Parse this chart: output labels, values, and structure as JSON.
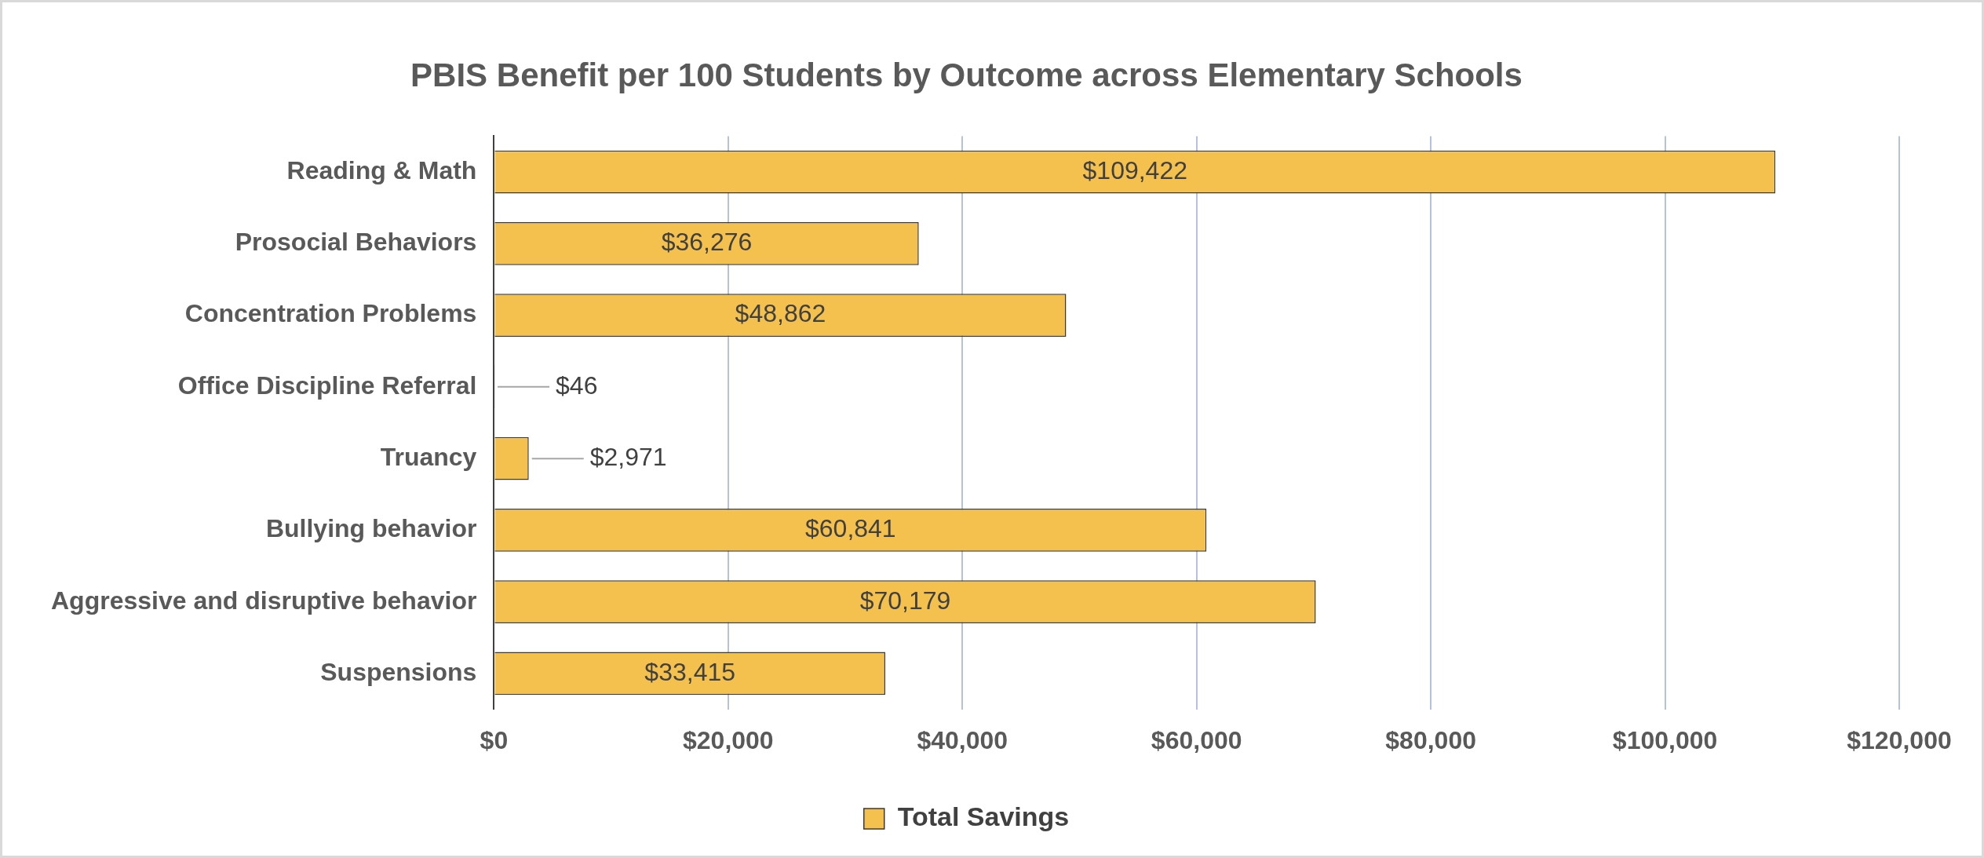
{
  "chart_data": {
    "type": "bar",
    "orientation": "horizontal",
    "title": "PBIS Benefit per 100 Students by Outcome across Elementary Schools",
    "categories": [
      "Reading & Math",
      "Prosocial Behaviors",
      "Concentration Problems",
      "Office Discipline Referral",
      "Truancy",
      "Bullying behavior",
      "Aggressive and disruptive behavior",
      "Suspensions"
    ],
    "series": [
      {
        "name": "Total Savings",
        "color": "#f4c04e",
        "values": [
          109422,
          36276,
          48862,
          46,
          2971,
          60841,
          70179,
          33415
        ],
        "value_labels": [
          "$109,422",
          "$36,276",
          "$48,862",
          "$46",
          "$2,971",
          "$60,841",
          "$70,179",
          "$33,415"
        ]
      }
    ],
    "xlim": [
      0,
      120000
    ],
    "xticks": [
      {
        "value": 0,
        "label": "$0"
      },
      {
        "value": 20000,
        "label": "$20,000"
      },
      {
        "value": 40000,
        "label": "$40,000"
      },
      {
        "value": 60000,
        "label": "$60,000"
      },
      {
        "value": 80000,
        "label": "$80,000"
      },
      {
        "value": 100000,
        "label": "$100,000"
      },
      {
        "value": 120000,
        "label": "$120,000"
      }
    ],
    "grid": "x",
    "legend": "bottom"
  }
}
